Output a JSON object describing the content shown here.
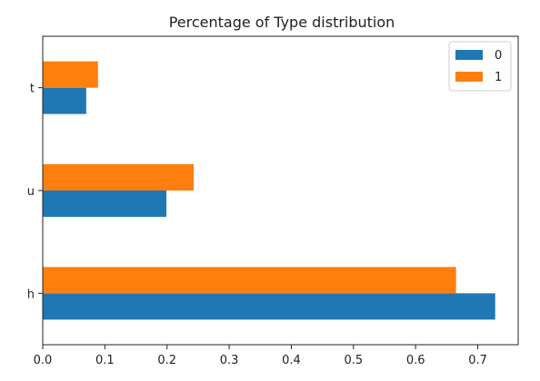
{
  "chart_data": {
    "type": "bar",
    "orientation": "horizontal",
    "title": "Percentage of Type distribution",
    "categories": [
      "h",
      "u",
      "t"
    ],
    "series": [
      {
        "name": "0",
        "values": [
          0.728,
          0.199,
          0.07
        ],
        "color": "#1f77b4"
      },
      {
        "name": "1",
        "values": [
          0.665,
          0.243,
          0.089
        ],
        "color": "#ff7f0e"
      }
    ],
    "xlim": [
      0,
      0.765
    ],
    "xticks": [
      0.0,
      0.1,
      0.2,
      0.3,
      0.4,
      0.5,
      0.6,
      0.7
    ],
    "tick_labels": [
      "0.0",
      "0.1",
      "0.2",
      "0.3",
      "0.4",
      "0.5",
      "0.6",
      "0.7"
    ],
    "xlabel": "",
    "ylabel": "",
    "grid": false,
    "legend_position": "top-right"
  }
}
